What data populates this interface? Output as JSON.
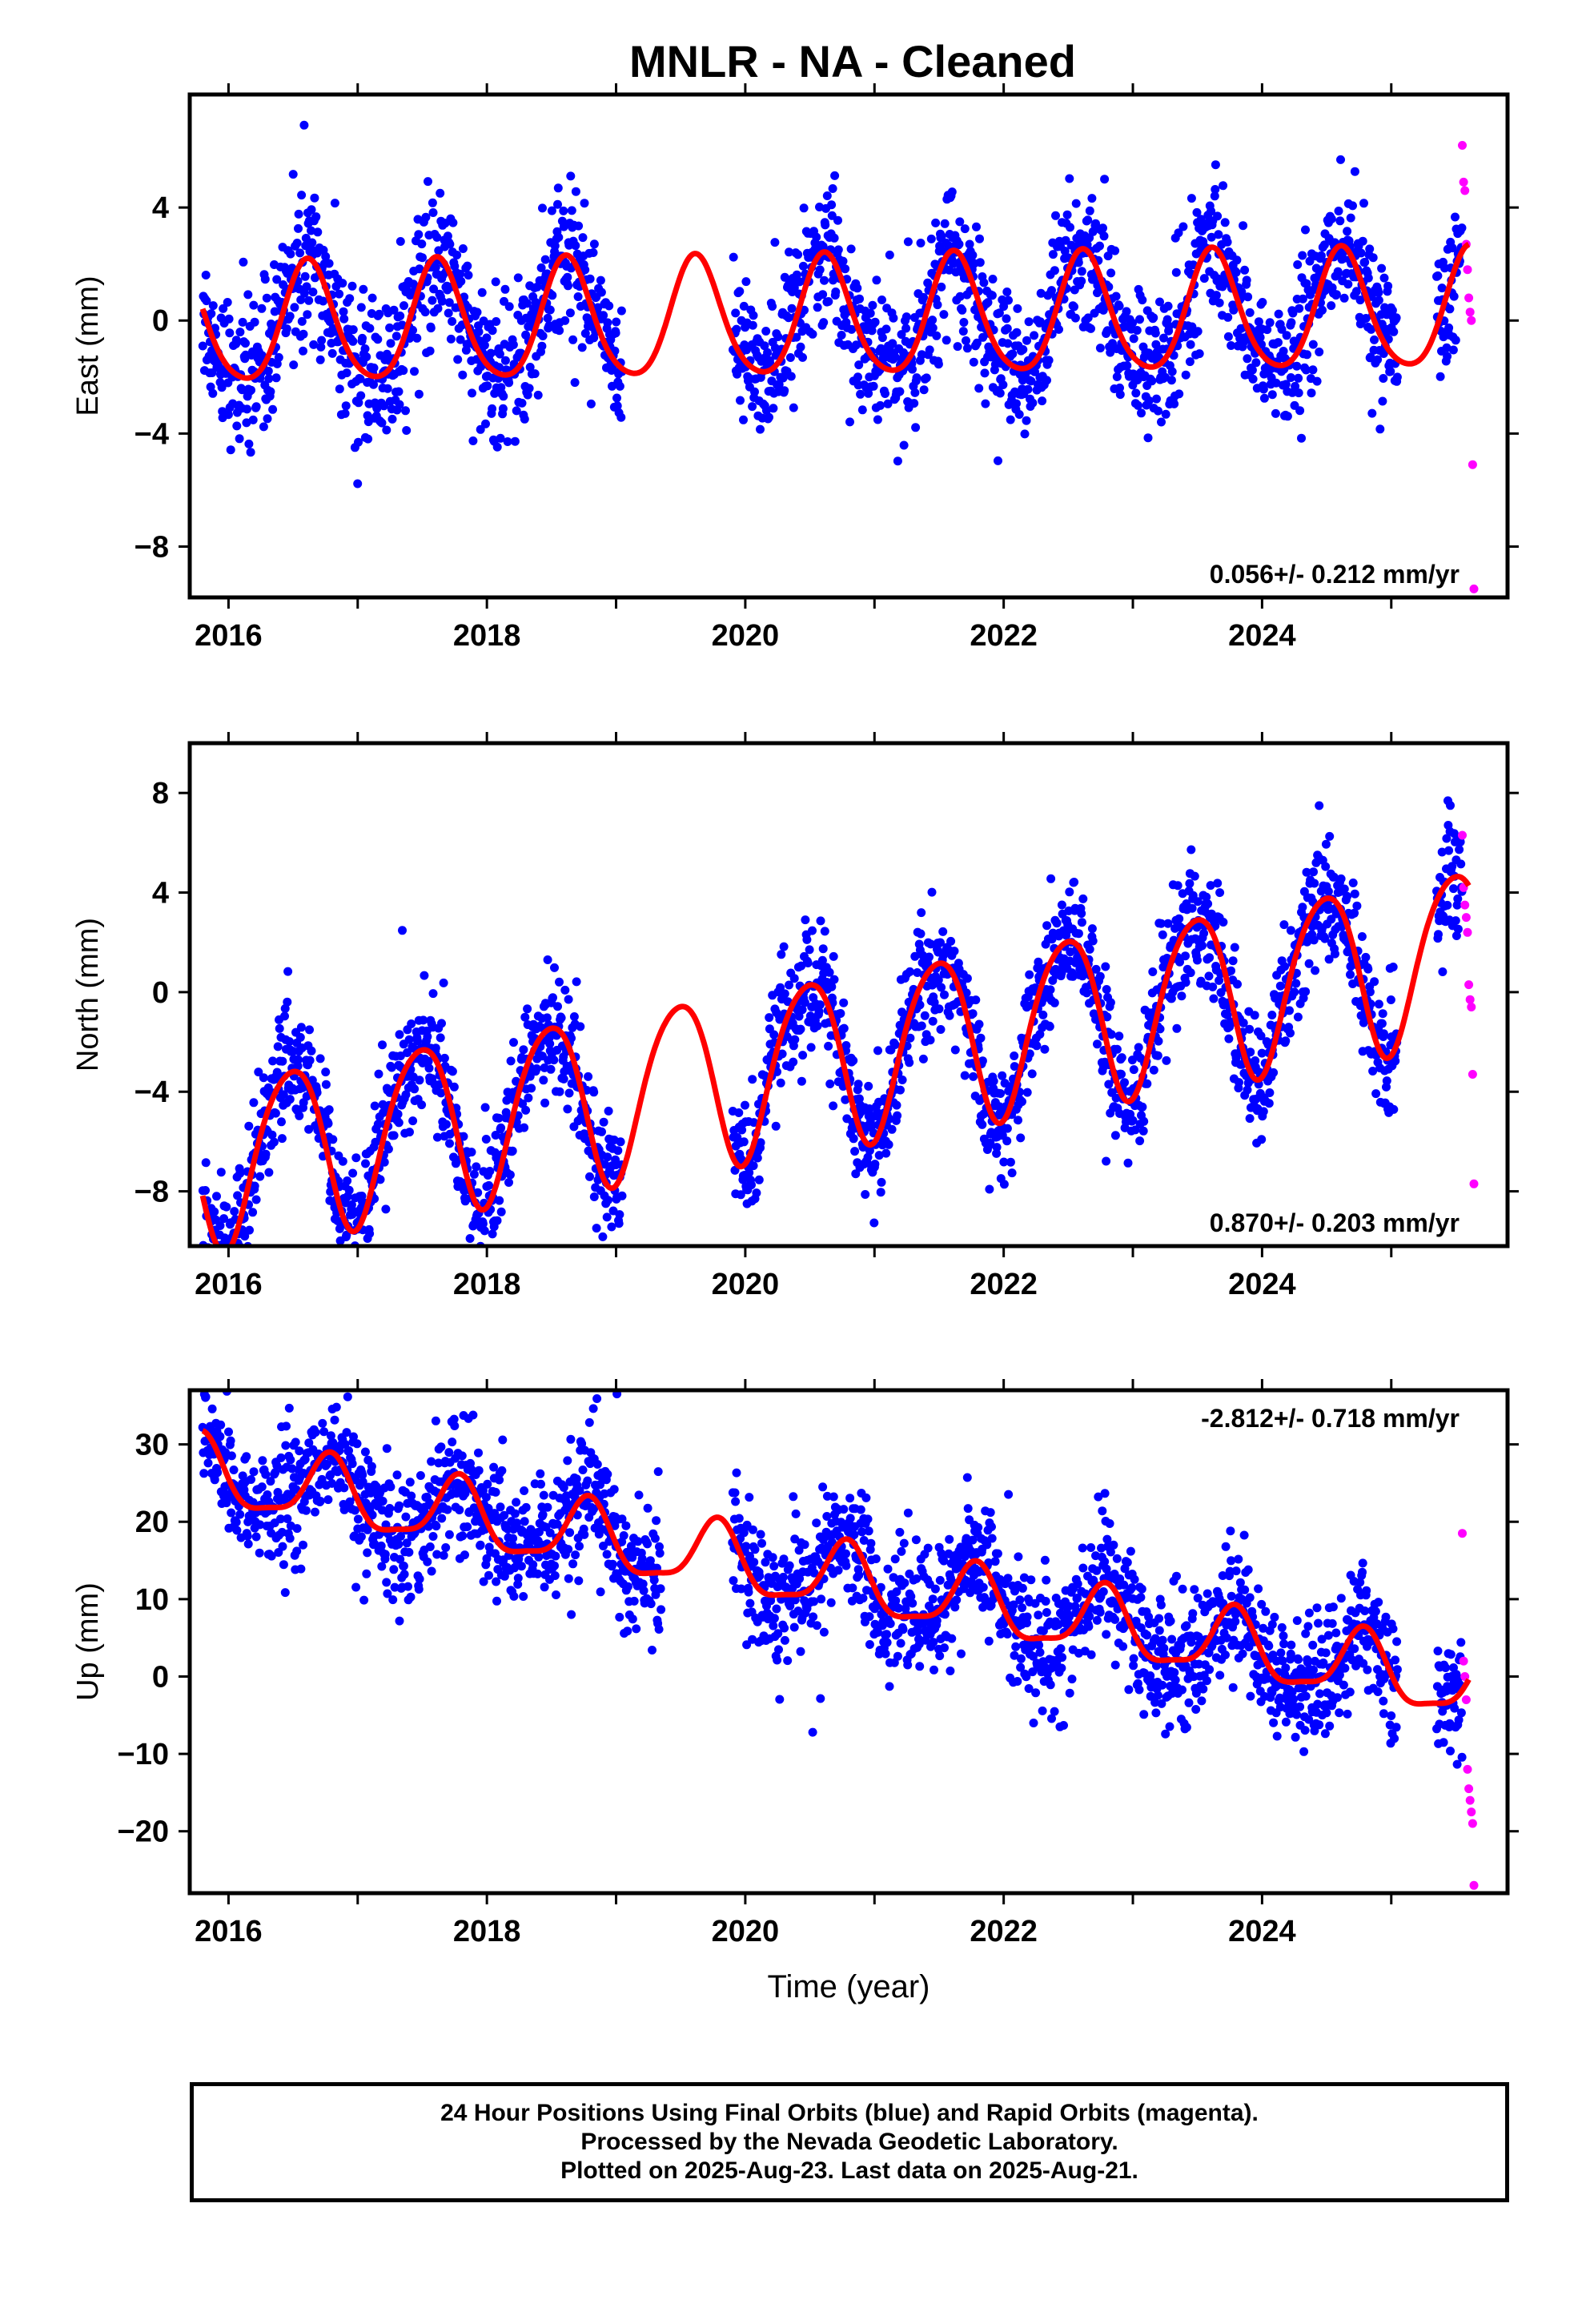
{
  "title": "MNLR  - NA - Cleaned",
  "colors": {
    "final_orbits": "#0000ff",
    "rapid_orbits": "#ff00ff",
    "model_fit": "#ff0000"
  },
  "footer": {
    "line1": "24 Hour Positions Using Final Orbits (blue) and Rapid Orbits (magenta).",
    "line2": "Processed by the Nevada Geodetic Laboratory.",
    "line3": "Plotted on 2025-Aug-23. Last data on 2025-Aug-21."
  },
  "chart_data": [
    {
      "type": "scatter",
      "ylabel": "East (mm)",
      "xlabel": "",
      "xlim": [
        2015.7,
        2025.9
      ],
      "ylim": [
        -9.8,
        8.0
      ],
      "xticks": [
        2016,
        2018,
        2020,
        2022,
        2024
      ],
      "yticks": [
        -8,
        -4,
        0,
        4
      ],
      "rate_label": "0.056+/- 0.212 mm/yr",
      "rate_position": "bottom-right",
      "series": [
        {
          "style": "points",
          "color": "final_orbits",
          "x_range": [
            2015.8,
            2025.55
          ],
          "gaps": [
            [
              2019.05,
              2019.9
            ],
            [
              2025.05,
              2025.35
            ]
          ],
          "seasonal_model": {
            "offset": 0.0,
            "rate": 0.056,
            "amp1": 2.1,
            "phase1": 0.62,
            "amp2": 0.3,
            "phase2": 0.1
          }
        },
        {
          "style": "points",
          "color": "rapid_orbits",
          "x": [
            2025.55,
            2025.56,
            2025.57,
            2025.58,
            2025.59,
            2025.6,
            2025.61,
            2025.62,
            2025.63,
            2025.64
          ],
          "y": [
            6.2,
            4.9,
            4.6,
            2.7,
            1.8,
            0.8,
            0.3,
            0.0,
            -5.1,
            -9.5
          ]
        },
        {
          "style": "line",
          "color": "model_fit",
          "x_range": [
            2015.8,
            2025.6
          ],
          "seasonal_model": {
            "offset": 0.0,
            "rate": 0.056,
            "amp1": 2.1,
            "phase1": 0.62,
            "amp2": 0.3,
            "phase2": 0.1
          }
        }
      ]
    },
    {
      "type": "scatter",
      "ylabel": "North (mm)",
      "xlabel": "",
      "xlim": [
        2015.7,
        2025.9
      ],
      "ylim": [
        -10.2,
        10.0
      ],
      "xticks": [
        2016,
        2018,
        2020,
        2022,
        2024
      ],
      "yticks": [
        -8,
        -4,
        0,
        4,
        8
      ],
      "rate_label": "0.870+/- 0.203 mm/yr",
      "rate_position": "bottom-right",
      "series": [
        {
          "style": "points",
          "color": "final_orbits",
          "x_range": [
            2015.8,
            2025.55
          ],
          "gaps": [
            [
              2019.05,
              2019.9
            ],
            [
              2025.05,
              2025.35
            ]
          ],
          "seasonal_model": {
            "offset": -3.2,
            "rate": 0.87,
            "amp1": 3.4,
            "phase1": 0.48,
            "amp2": 0.4,
            "phase2": 0.2
          }
        },
        {
          "style": "points",
          "color": "rapid_orbits",
          "x": [
            2025.55,
            2025.56,
            2025.57,
            2025.58,
            2025.59,
            2025.6,
            2025.61,
            2025.62,
            2025.63,
            2025.64
          ],
          "y": [
            6.3,
            4.2,
            3.5,
            3.0,
            2.4,
            0.3,
            -0.3,
            -0.6,
            -3.3,
            -7.7
          ]
        },
        {
          "style": "line",
          "color": "model_fit",
          "x_range": [
            2015.8,
            2025.6
          ],
          "seasonal_model": {
            "offset": -3.2,
            "rate": 0.87,
            "amp1": 3.4,
            "phase1": 0.48,
            "amp2": 0.4,
            "phase2": 0.2
          }
        }
      ]
    },
    {
      "type": "scatter",
      "ylabel": "Up (mm)",
      "xlabel": "Time (year)",
      "xlim": [
        2015.7,
        2025.9
      ],
      "ylim": [
        -28,
        37
      ],
      "xticks": [
        2016,
        2018,
        2020,
        2022,
        2024
      ],
      "yticks": [
        -20,
        -10,
        0,
        10,
        20,
        30
      ],
      "rate_label": "-2.812+/- 0.718 mm/yr",
      "rate_position": "top-right",
      "series": [
        {
          "style": "points",
          "color": "final_orbits",
          "x_range": [
            2015.8,
            2025.55
          ],
          "gaps": [
            [
              2019.35,
              2019.9
            ],
            [
              2025.05,
              2025.35
            ]
          ],
          "seasonal_model": {
            "offset": 14.5,
            "rate": -2.812,
            "amp1": 4.3,
            "phase1": 0.78,
            "amp2": 1.2,
            "phase2": 0.3
          }
        },
        {
          "style": "points",
          "color": "rapid_orbits",
          "x": [
            2025.55,
            2025.56,
            2025.57,
            2025.58,
            2025.59,
            2025.6,
            2025.61,
            2025.62,
            2025.63,
            2025.64
          ],
          "y": [
            18.5,
            2.0,
            0.0,
            -3.0,
            -12.0,
            -14.5,
            -16.0,
            -17.5,
            -19.0,
            -27.0
          ]
        },
        {
          "style": "line",
          "color": "model_fit",
          "x_range": [
            2015.8,
            2025.6
          ],
          "seasonal_model": {
            "offset": 14.5,
            "rate": -2.812,
            "amp1": 4.3,
            "phase1": 0.78,
            "amp2": 1.2,
            "phase2": 0.3
          }
        }
      ]
    }
  ]
}
